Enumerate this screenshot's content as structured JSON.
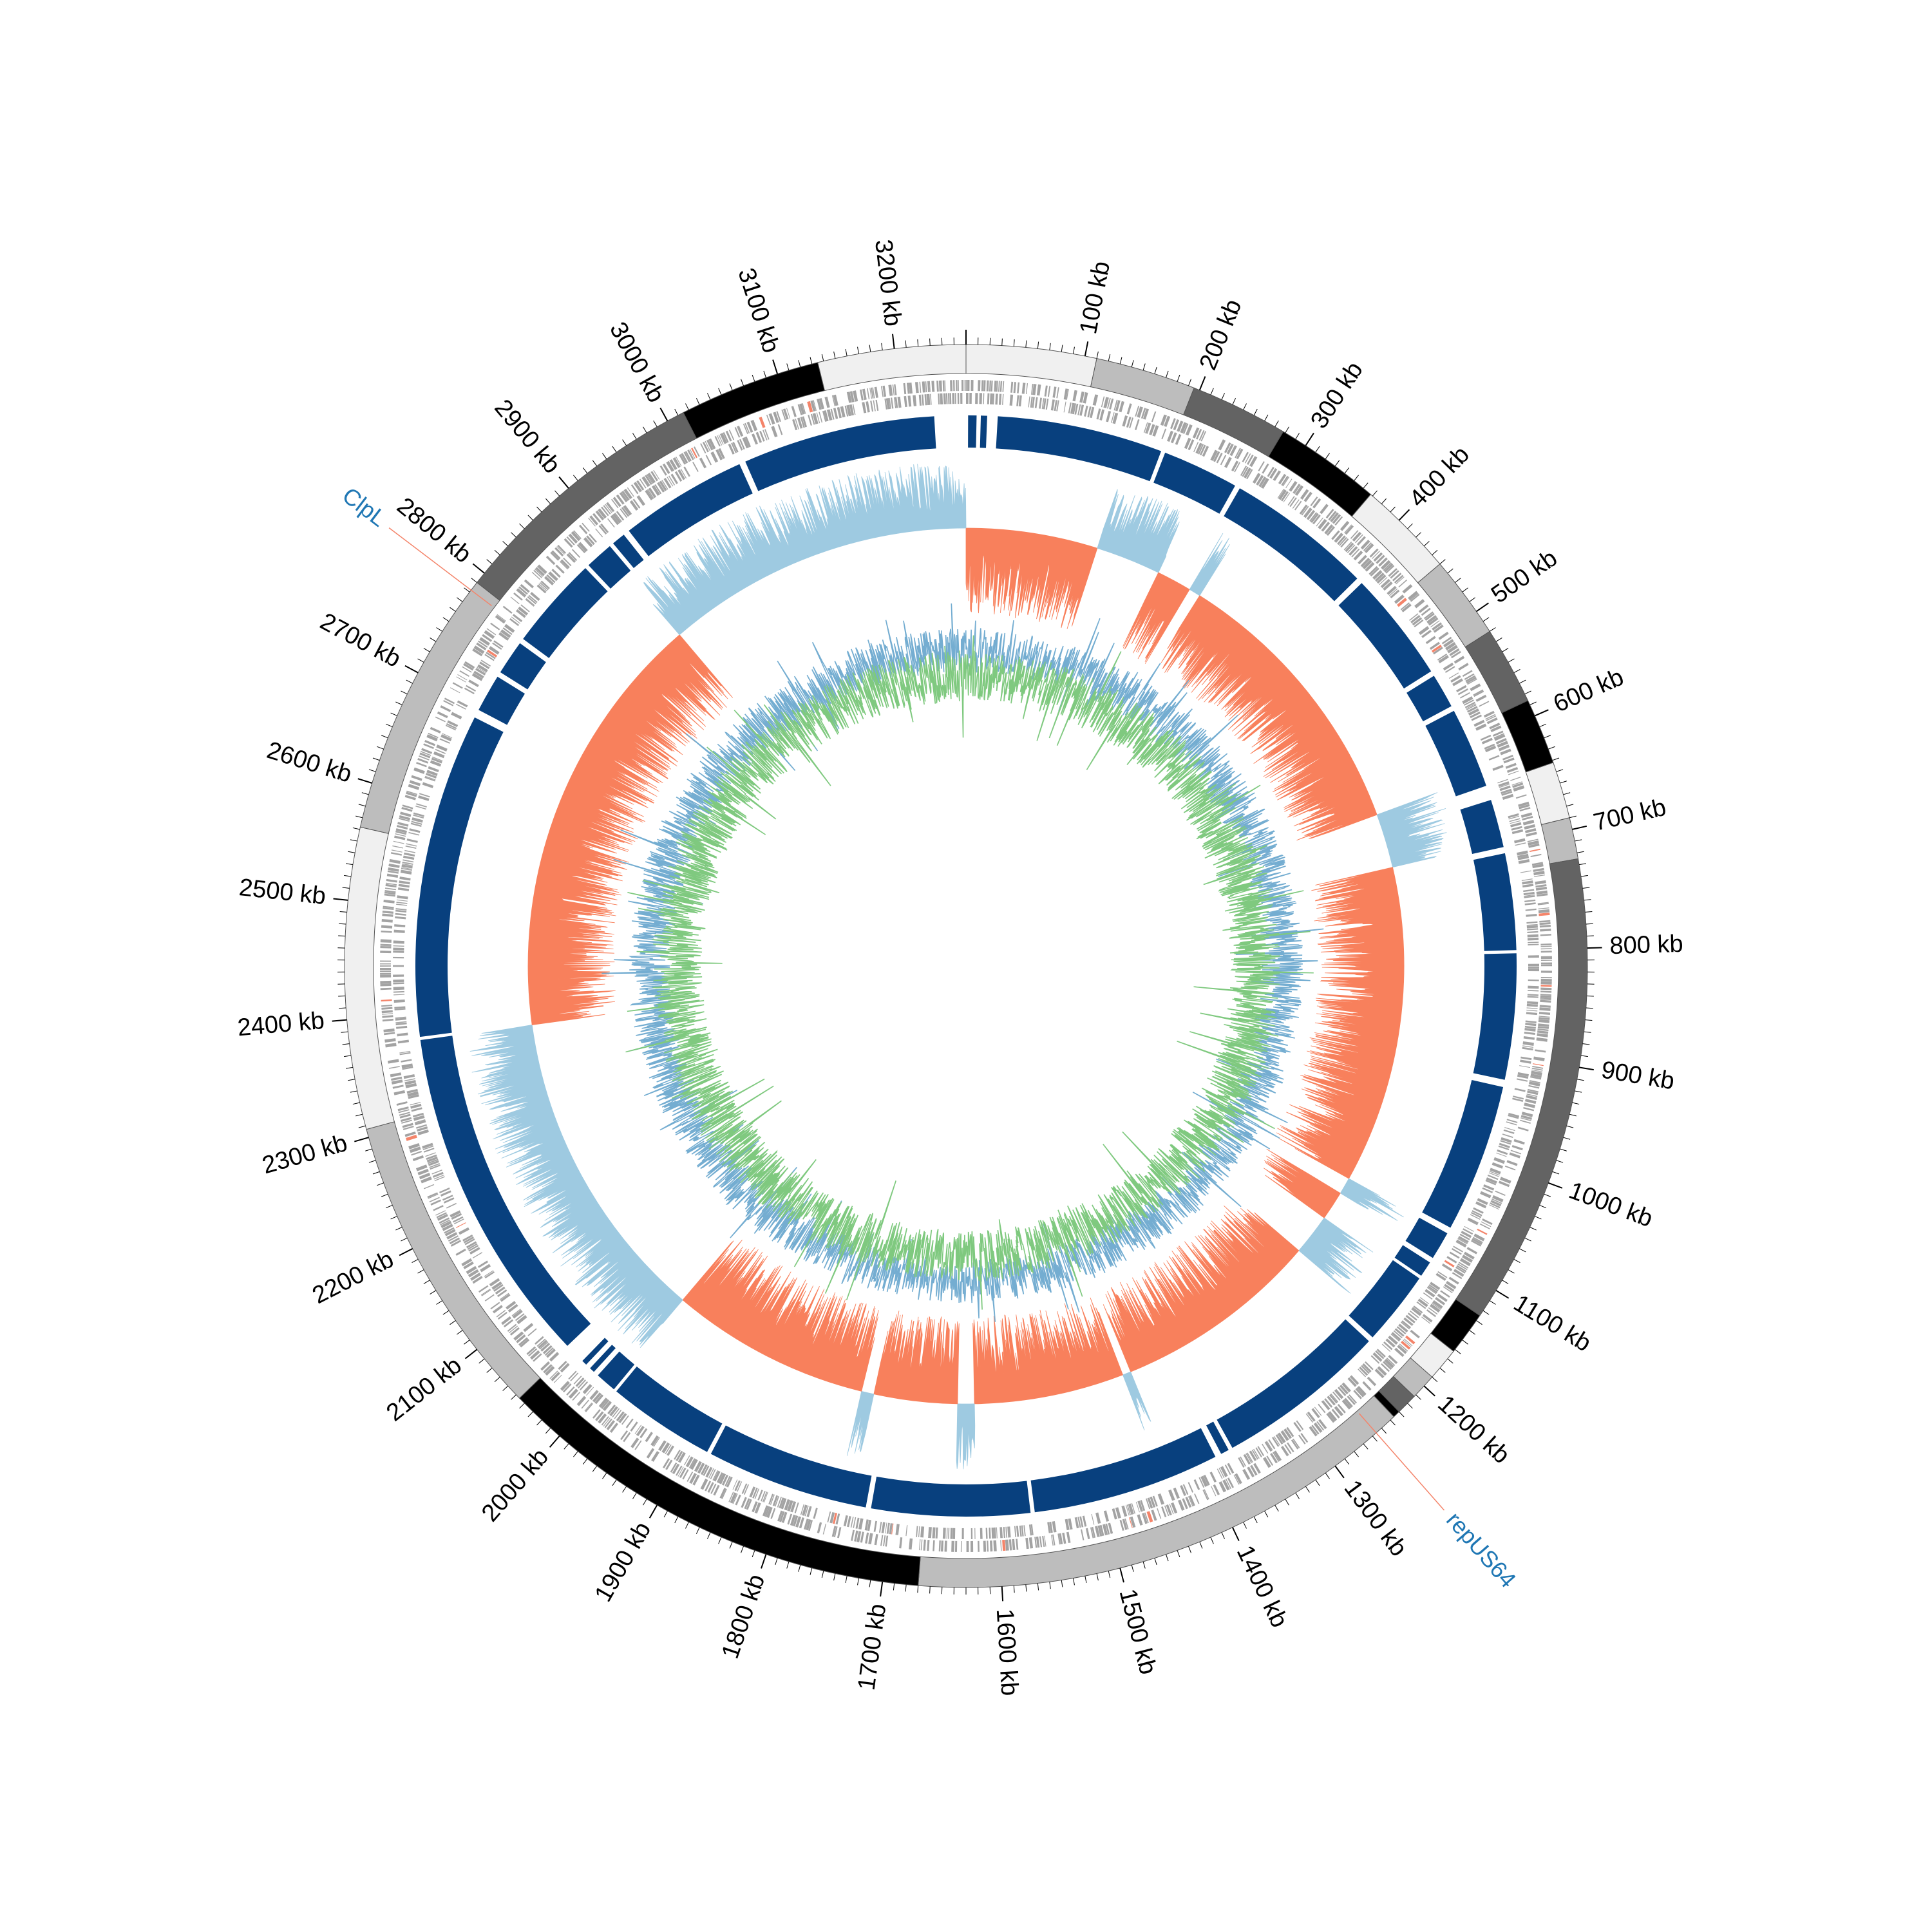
{
  "genome": {
    "length_kb": 3260,
    "tick_unit": "kb",
    "major_ticks_kb": [
      100,
      200,
      300,
      400,
      500,
      600,
      700,
      800,
      900,
      1000,
      1100,
      1200,
      1300,
      1400,
      1500,
      1600,
      1700,
      1800,
      1900,
      2000,
      2100,
      2200,
      2300,
      2400,
      2500,
      2600,
      2700,
      2800,
      2900,
      3000,
      3100,
      3200
    ],
    "contig_blocks": [
      {
        "start": 0,
        "end": 110,
        "shade": "#f0f0f0"
      },
      {
        "start": 110,
        "end": 195,
        "shade": "#bdbdbd"
      },
      {
        "start": 195,
        "end": 278,
        "shade": "#636363"
      },
      {
        "start": 278,
        "end": 368,
        "shade": "#000000"
      },
      {
        "start": 368,
        "end": 450,
        "shade": "#f0f0f0"
      },
      {
        "start": 450,
        "end": 520,
        "shade": "#bdbdbd"
      },
      {
        "start": 520,
        "end": 586,
        "shade": "#636363"
      },
      {
        "start": 586,
        "end": 642,
        "shade": "#000000"
      },
      {
        "start": 642,
        "end": 690,
        "shade": "#f0f0f0"
      },
      {
        "start": 690,
        "end": 725,
        "shade": "#bdbdbd"
      },
      {
        "start": 725,
        "end": 1125,
        "shade": "#636363"
      },
      {
        "start": 1125,
        "end": 1162,
        "shade": "#000000"
      },
      {
        "start": 1162,
        "end": 1190,
        "shade": "#f0f0f0"
      },
      {
        "start": 1190,
        "end": 1212,
        "shade": "#bdbdbd"
      },
      {
        "start": 1212,
        "end": 1230,
        "shade": "#636363"
      },
      {
        "start": 1230,
        "end": 1236,
        "shade": "#000000"
      },
      {
        "start": 1236,
        "end": 1670,
        "shade": "#bdbdbd"
      },
      {
        "start": 1670,
        "end": 2046,
        "shade": "#000000"
      },
      {
        "start": 2046,
        "end": 2307,
        "shade": "#bdbdbd"
      },
      {
        "start": 2307,
        "end": 2562,
        "shade": "#f0f0f0"
      },
      {
        "start": 2562,
        "end": 2790,
        "shade": "#bdbdbd"
      },
      {
        "start": 2790,
        "end": 3015,
        "shade": "#636363"
      },
      {
        "start": 3015,
        "end": 3135,
        "shade": "#000000"
      },
      {
        "start": 3135,
        "end": 3260,
        "shade": "#f0f0f0"
      }
    ],
    "synteny_blocks": [
      {
        "start": 2,
        "end": 10
      },
      {
        "start": 14,
        "end": 20
      },
      {
        "start": 30,
        "end": 188
      },
      {
        "start": 192,
        "end": 265
      },
      {
        "start": 270,
        "end": 410
      },
      {
        "start": 416,
        "end": 522
      },
      {
        "start": 527,
        "end": 560
      },
      {
        "start": 565,
        "end": 642
      },
      {
        "start": 656,
        "end": 702
      },
      {
        "start": 708,
        "end": 800
      },
      {
        "start": 803,
        "end": 923
      },
      {
        "start": 930,
        "end": 1072
      },
      {
        "start": 1078,
        "end": 1105
      },
      {
        "start": 1110,
        "end": 1125
      },
      {
        "start": 1128,
        "end": 1199
      },
      {
        "start": 1204,
        "end": 1368
      },
      {
        "start": 1372,
        "end": 1380
      },
      {
        "start": 1386,
        "end": 1565
      },
      {
        "start": 1569,
        "end": 1720
      },
      {
        "start": 1725,
        "end": 1880
      },
      {
        "start": 1884,
        "end": 1987
      },
      {
        "start": 1990,
        "end": 2010
      },
      {
        "start": 2015,
        "end": 2020
      },
      {
        "start": 2025,
        "end": 2030
      },
      {
        "start": 2050,
        "end": 2375
      },
      {
        "start": 2378,
        "end": 2688
      },
      {
        "start": 2696,
        "end": 2732
      },
      {
        "start": 2737,
        "end": 2770
      },
      {
        "start": 2775,
        "end": 2864
      },
      {
        "start": 2868,
        "end": 2895
      },
      {
        "start": 2899,
        "end": 2912
      },
      {
        "start": 2918,
        "end": 3040
      },
      {
        "start": 3046,
        "end": 3230
      }
    ],
    "skew_segments": [
      {
        "start": 0,
        "end": 158,
        "polarity": "positive"
      },
      {
        "start": 158,
        "end": 236,
        "polarity": "negative"
      },
      {
        "start": 236,
        "end": 278,
        "polarity": "positive"
      },
      {
        "start": 278,
        "end": 292,
        "polarity": "negative"
      },
      {
        "start": 292,
        "end": 632,
        "polarity": "positive"
      },
      {
        "start": 632,
        "end": 697,
        "polarity": "negative"
      },
      {
        "start": 697,
        "end": 1078,
        "polarity": "positive"
      },
      {
        "start": 1078,
        "end": 1098,
        "polarity": "negative"
      },
      {
        "start": 1098,
        "end": 1133,
        "polarity": "positive"
      },
      {
        "start": 1133,
        "end": 1182,
        "polarity": "negative"
      },
      {
        "start": 1182,
        "end": 1430,
        "polarity": "positive"
      },
      {
        "start": 1430,
        "end": 1440,
        "polarity": "negative"
      },
      {
        "start": 1440,
        "end": 1620,
        "polarity": "positive"
      },
      {
        "start": 1620,
        "end": 1640,
        "polarity": "negative"
      },
      {
        "start": 1640,
        "end": 1740,
        "polarity": "positive"
      },
      {
        "start": 1740,
        "end": 1755,
        "polarity": "negative"
      },
      {
        "start": 1755,
        "end": 1995,
        "polarity": "positive"
      },
      {
        "start": 1995,
        "end": 2375,
        "polarity": "negative"
      },
      {
        "start": 2375,
        "end": 2890,
        "polarity": "positive"
      },
      {
        "start": 2890,
        "end": 3260,
        "polarity": "negative"
      }
    ]
  },
  "annotations": [
    {
      "label": "ClpL",
      "position_kb": 2782
    },
    {
      "label": "repUS64",
      "position_kb": 1256
    }
  ],
  "colors": {
    "synteny": "#08407e",
    "synteny_highlight": "#1f5fa5",
    "gene_feature": "#a3a3a3",
    "gene_highlight": "#f4846a",
    "skew_positive": "#f8805c",
    "skew_negative": "#9ecae1",
    "gc_content": "#74add1",
    "gc_skew_inner": "#7fc97f",
    "annotation_text": "#1f77b4",
    "annotation_line": "#f4846a"
  }
}
